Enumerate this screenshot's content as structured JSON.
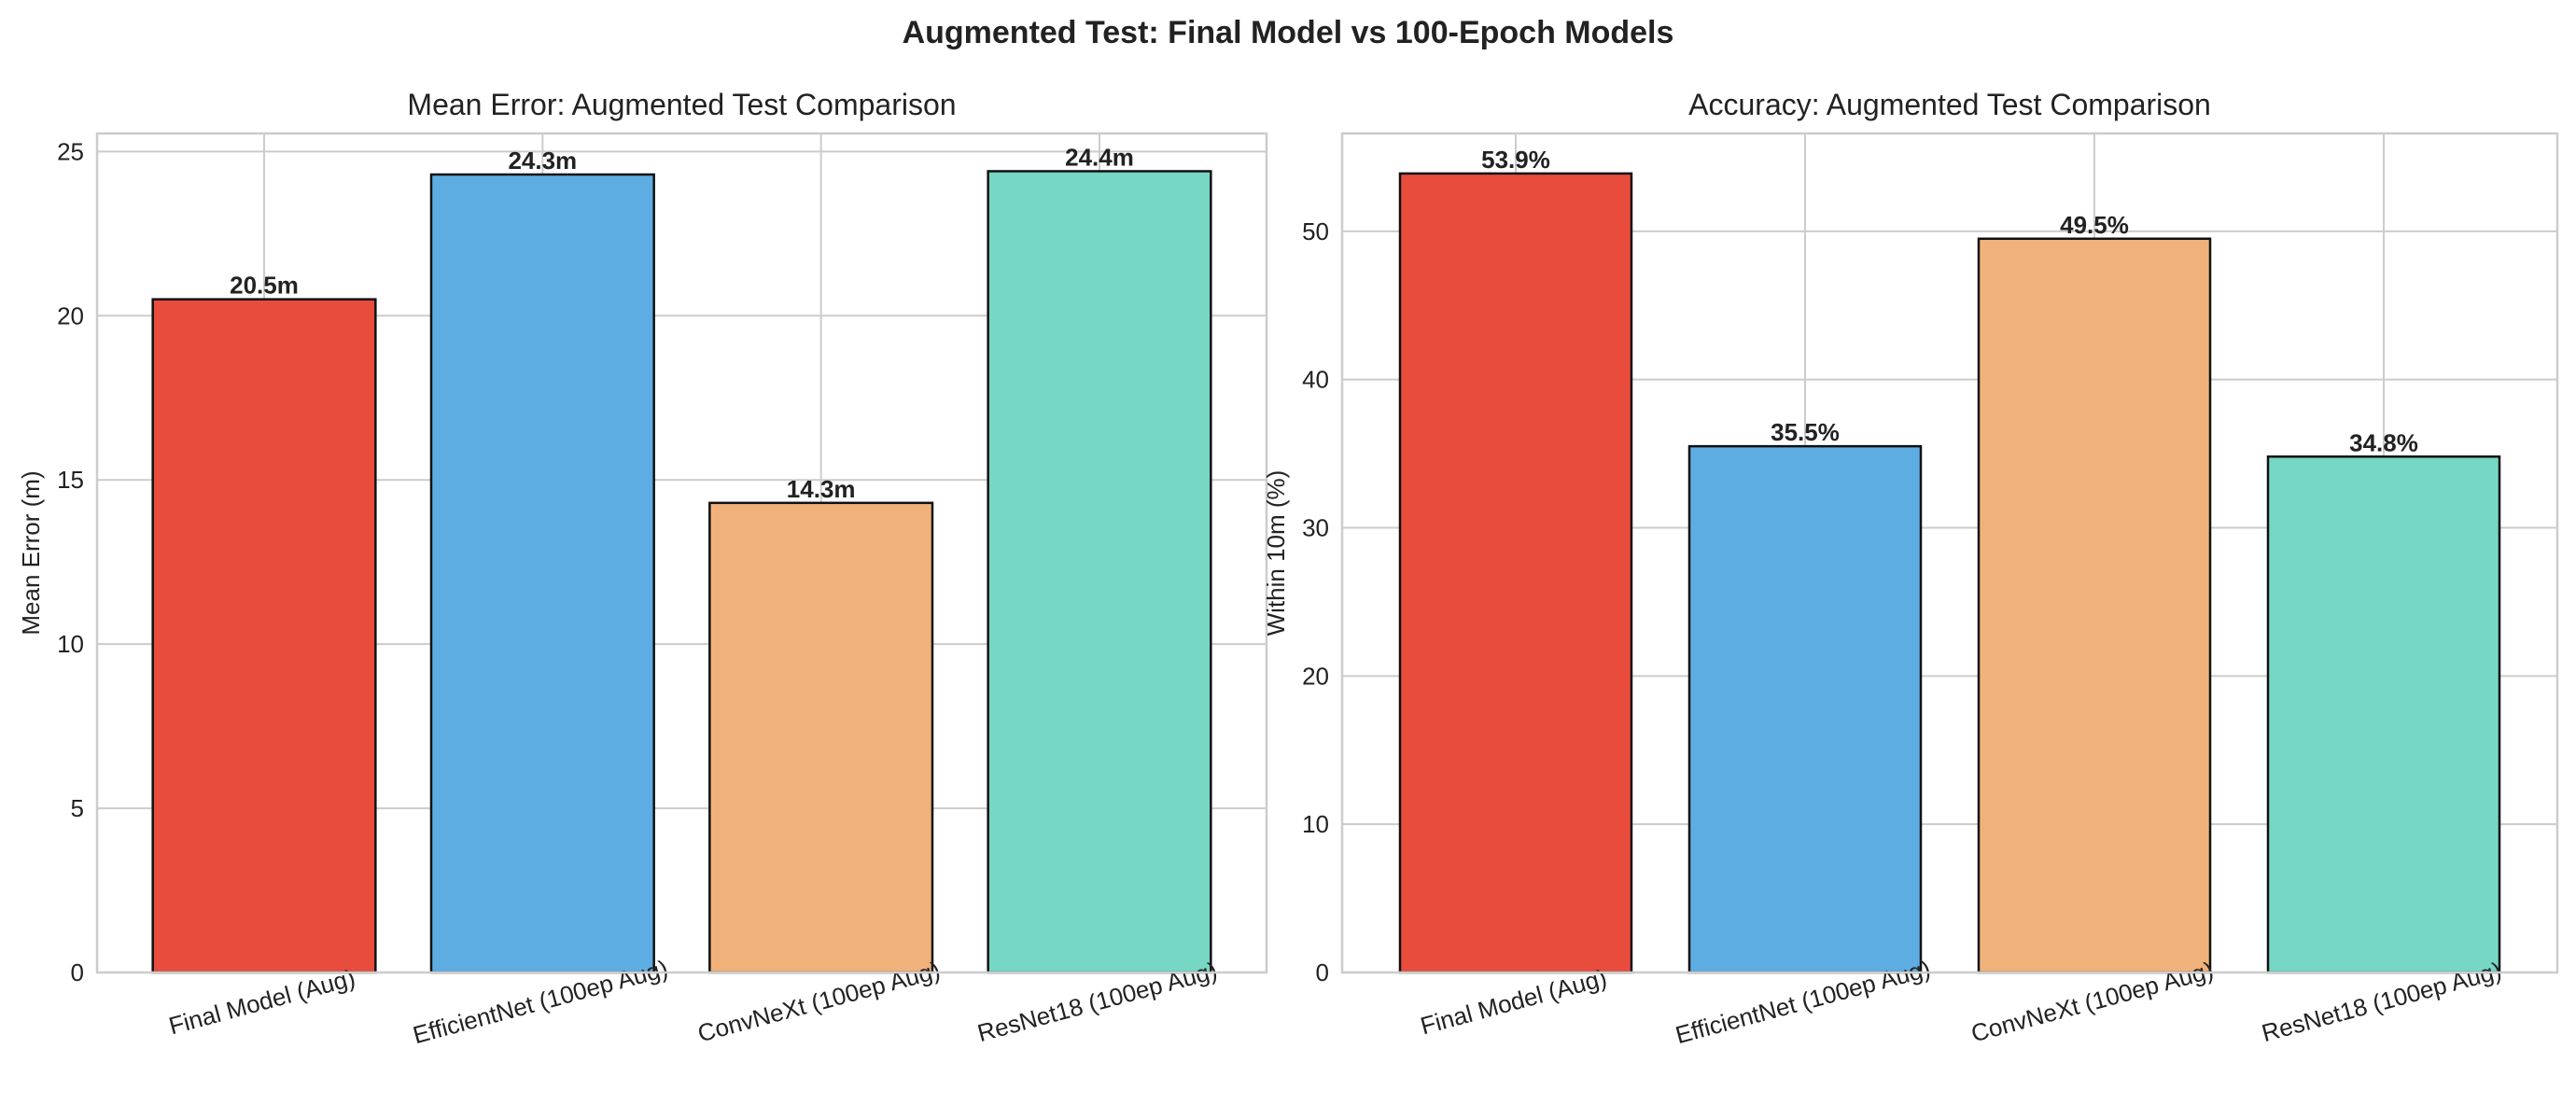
{
  "title": "Augmented Test: Final Model vs 100-Epoch Models",
  "chart_data": [
    {
      "type": "bar",
      "title": "Mean Error: Augmented Test Comparison",
      "xlabel": "",
      "ylabel": "Mean Error (m)",
      "categories": [
        "Final Model (Aug)",
        "EfficientNet (100ep Aug)",
        "ConvNeXt (100ep Aug)",
        "ResNet18 (100ep Aug)"
      ],
      "values": [
        20.5,
        24.3,
        14.3,
        24.4
      ],
      "data_labels": [
        "20.5m",
        "24.3m",
        "14.3m",
        "24.4m"
      ],
      "colors": [
        "#e74c3c",
        "#5dade2",
        "#f0b27a",
        "#76d7c4"
      ],
      "ylim": [
        0,
        25.55
      ],
      "yticks": [
        0,
        5,
        10,
        15,
        20,
        25
      ],
      "grid": true
    },
    {
      "type": "bar",
      "title": "Accuracy: Augmented Test Comparison",
      "xlabel": "",
      "ylabel": "Within 10m (%)",
      "categories": [
        "Final Model (Aug)",
        "EfficientNet (100ep Aug)",
        "ConvNeXt (100ep Aug)",
        "ResNet18 (100ep Aug)"
      ],
      "values": [
        53.9,
        35.5,
        49.5,
        34.8
      ],
      "data_labels": [
        "53.9%",
        "35.5%",
        "49.5%",
        "34.8%"
      ],
      "colors": [
        "#e74c3c",
        "#5dade2",
        "#f0b27a",
        "#76d7c4"
      ],
      "ylim": [
        0,
        56.6
      ],
      "yticks": [
        0,
        10,
        20,
        30,
        40,
        50
      ],
      "grid": true
    }
  ]
}
